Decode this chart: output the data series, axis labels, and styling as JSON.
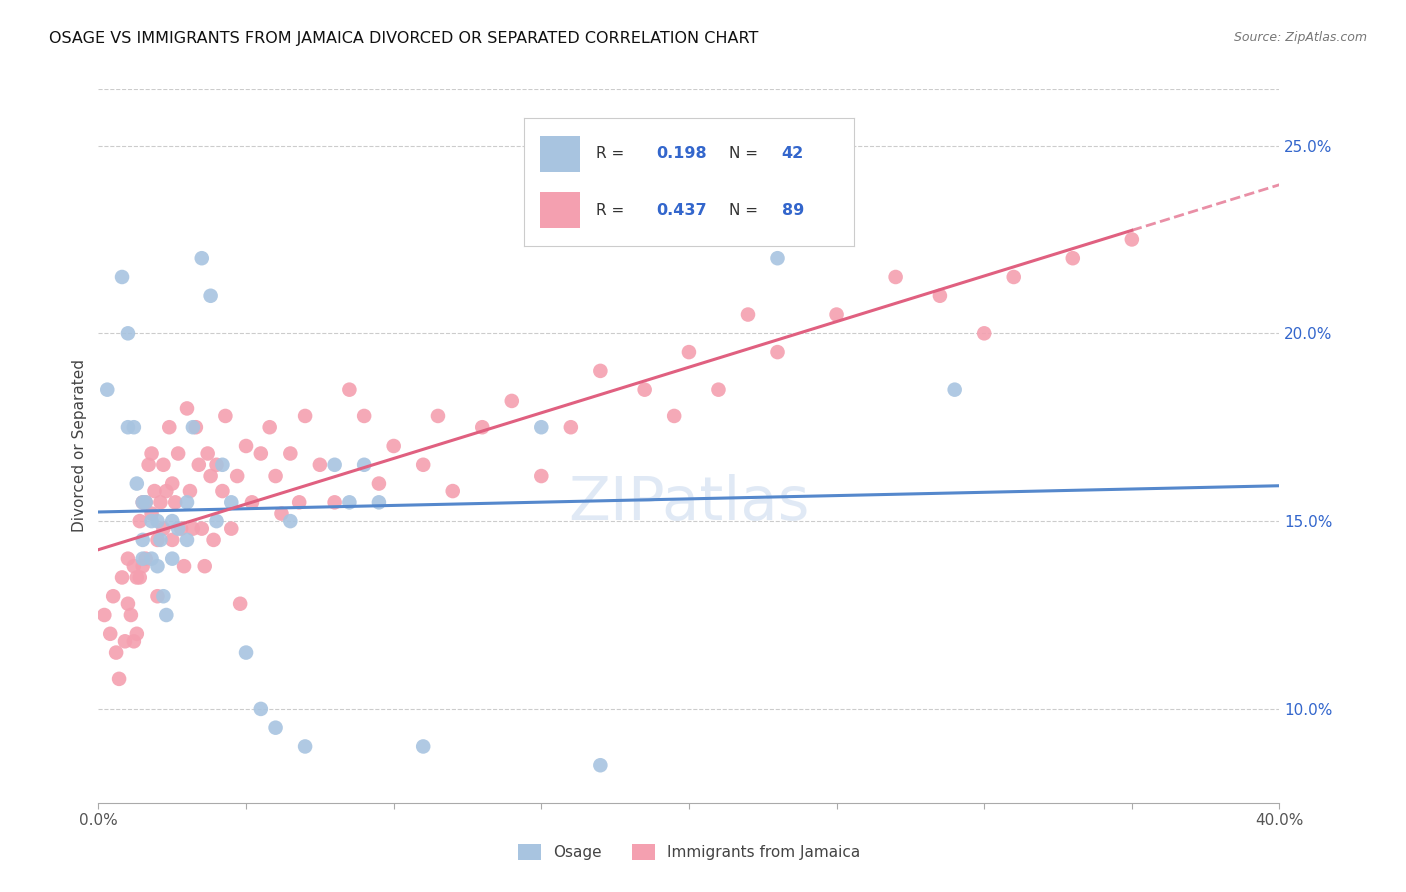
{
  "title": "OSAGE VS IMMIGRANTS FROM JAMAICA DIVORCED OR SEPARATED CORRELATION CHART",
  "source": "Source: ZipAtlas.com",
  "ylabel": "Divorced or Separated",
  "x_min": 0.0,
  "x_max": 0.4,
  "y_min": 0.075,
  "y_max": 0.265,
  "color_osage": "#a8c4e0",
  "color_jamaica": "#f4a0b0",
  "color_line_osage": "#5588cc",
  "color_line_jamaica": "#e06080",
  "color_text_blue": "#3366cc",
  "background_color": "#ffffff",
  "grid_color": "#cccccc",
  "osage_x": [
    0.003,
    0.008,
    0.01,
    0.01,
    0.012,
    0.013,
    0.015,
    0.015,
    0.015,
    0.016,
    0.018,
    0.018,
    0.02,
    0.02,
    0.021,
    0.022,
    0.023,
    0.025,
    0.025,
    0.027,
    0.03,
    0.03,
    0.032,
    0.035,
    0.038,
    0.04,
    0.042,
    0.045,
    0.05,
    0.055,
    0.06,
    0.065,
    0.07,
    0.08,
    0.085,
    0.09,
    0.095,
    0.11,
    0.15,
    0.17,
    0.23,
    0.29
  ],
  "osage_y": [
    0.185,
    0.215,
    0.175,
    0.2,
    0.175,
    0.16,
    0.155,
    0.145,
    0.14,
    0.155,
    0.15,
    0.14,
    0.15,
    0.138,
    0.145,
    0.13,
    0.125,
    0.15,
    0.14,
    0.148,
    0.155,
    0.145,
    0.175,
    0.22,
    0.21,
    0.15,
    0.165,
    0.155,
    0.115,
    0.1,
    0.095,
    0.15,
    0.09,
    0.165,
    0.155,
    0.165,
    0.155,
    0.09,
    0.175,
    0.085,
    0.22,
    0.185
  ],
  "jamaica_x": [
    0.002,
    0.004,
    0.005,
    0.006,
    0.007,
    0.008,
    0.009,
    0.01,
    0.01,
    0.011,
    0.012,
    0.012,
    0.013,
    0.013,
    0.014,
    0.014,
    0.015,
    0.015,
    0.016,
    0.016,
    0.017,
    0.018,
    0.018,
    0.019,
    0.02,
    0.02,
    0.021,
    0.022,
    0.022,
    0.023,
    0.024,
    0.025,
    0.025,
    0.026,
    0.027,
    0.028,
    0.029,
    0.03,
    0.031,
    0.032,
    0.033,
    0.034,
    0.035,
    0.036,
    0.037,
    0.038,
    0.039,
    0.04,
    0.042,
    0.043,
    0.045,
    0.047,
    0.048,
    0.05,
    0.052,
    0.055,
    0.058,
    0.06,
    0.062,
    0.065,
    0.068,
    0.07,
    0.075,
    0.08,
    0.085,
    0.09,
    0.095,
    0.1,
    0.11,
    0.115,
    0.12,
    0.13,
    0.14,
    0.15,
    0.16,
    0.17,
    0.185,
    0.195,
    0.2,
    0.21,
    0.22,
    0.23,
    0.25,
    0.27,
    0.285,
    0.3,
    0.31,
    0.33,
    0.35
  ],
  "jamaica_y": [
    0.125,
    0.12,
    0.13,
    0.115,
    0.108,
    0.135,
    0.118,
    0.14,
    0.128,
    0.125,
    0.138,
    0.118,
    0.135,
    0.12,
    0.15,
    0.135,
    0.155,
    0.138,
    0.155,
    0.14,
    0.165,
    0.168,
    0.152,
    0.158,
    0.145,
    0.13,
    0.155,
    0.165,
    0.148,
    0.158,
    0.175,
    0.16,
    0.145,
    0.155,
    0.168,
    0.148,
    0.138,
    0.18,
    0.158,
    0.148,
    0.175,
    0.165,
    0.148,
    0.138,
    0.168,
    0.162,
    0.145,
    0.165,
    0.158,
    0.178,
    0.148,
    0.162,
    0.128,
    0.17,
    0.155,
    0.168,
    0.175,
    0.162,
    0.152,
    0.168,
    0.155,
    0.178,
    0.165,
    0.155,
    0.185,
    0.178,
    0.16,
    0.17,
    0.165,
    0.178,
    0.158,
    0.175,
    0.182,
    0.162,
    0.175,
    0.19,
    0.185,
    0.178,
    0.195,
    0.185,
    0.205,
    0.195,
    0.205,
    0.215,
    0.21,
    0.2,
    0.215,
    0.22,
    0.225
  ]
}
